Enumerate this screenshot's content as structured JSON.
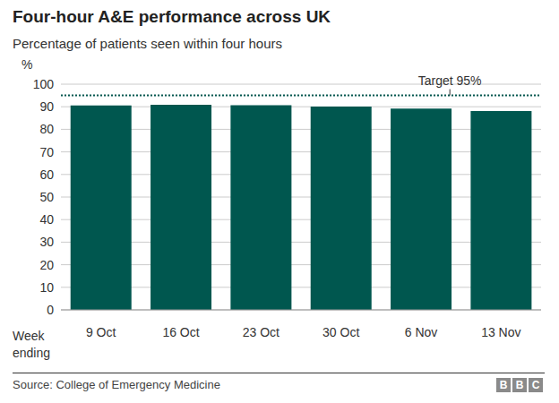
{
  "chart_data": {
    "type": "bar",
    "title": "Four-hour A&E performance across UK",
    "subtitle": "Percentage of patients seen within four hours",
    "y_label": "%",
    "x_label": "Week ending",
    "categories": [
      "9 Oct",
      "16 Oct",
      "23 Oct",
      "30 Oct",
      "6 Nov",
      "13 Nov"
    ],
    "values": [
      90.6,
      90.9,
      90.7,
      90.1,
      89.2,
      88.1
    ],
    "color": "#00574f",
    "ylim": [
      0,
      100
    ],
    "yticks": [
      0,
      10,
      20,
      30,
      40,
      50,
      60,
      70,
      80,
      90,
      100
    ],
    "grid": true,
    "target": {
      "value": 95,
      "label": "Target 95%"
    },
    "source": "Source: College of Emergency Medicine",
    "logo": "BBC"
  }
}
